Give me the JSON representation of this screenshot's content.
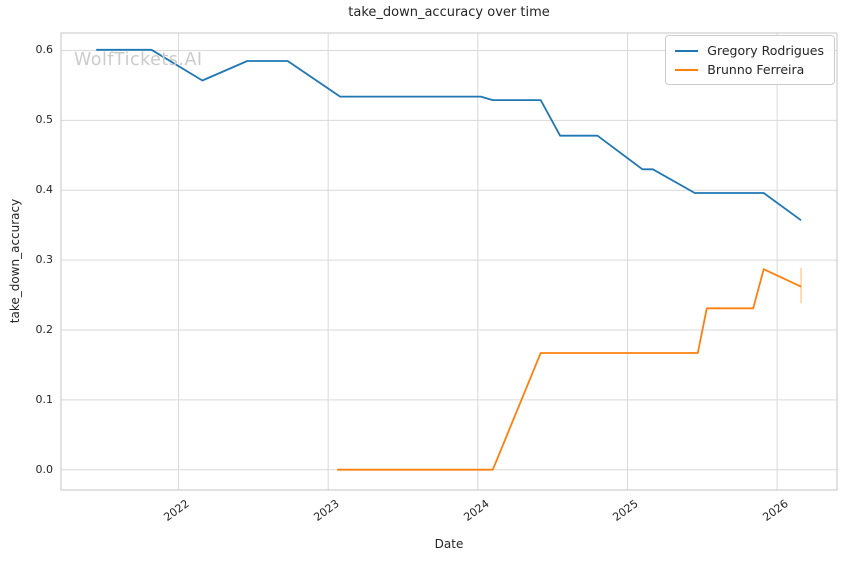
{
  "watermark": {
    "text": "WolfTickets.AI"
  },
  "colors": {
    "grid": "#d9d9d9",
    "spine": "#c6c6c6",
    "text": "#262626",
    "watermark": "#cbcbcb",
    "series_blue": "#1f77b4",
    "series_orange": "#ff7f0e",
    "background": "#ffffff"
  },
  "legend": {
    "position": "upper right",
    "items": [
      {
        "label": "Gregory Rodrigues",
        "color": "#1f77b4"
      },
      {
        "label": "Brunno Ferreira",
        "color": "#ff7f0e"
      }
    ]
  },
  "chart_data": {
    "type": "line",
    "title": "take_down_accuracy over time",
    "xlabel": "Date",
    "ylabel": "take_down_accuracy",
    "xlim": [
      2021.215,
      2026.4
    ],
    "ylim": [
      -0.029,
      0.625
    ],
    "grid": true,
    "legend_position": "upper right",
    "x_ticks": [
      {
        "value": 2022,
        "label": "2022"
      },
      {
        "value": 2023,
        "label": "2023"
      },
      {
        "value": 2024,
        "label": "2024"
      },
      {
        "value": 2025,
        "label": "2025"
      },
      {
        "value": 2026,
        "label": "2026"
      }
    ],
    "y_ticks": [
      {
        "value": 0.0,
        "label": "0.0"
      },
      {
        "value": 0.1,
        "label": "0.1"
      },
      {
        "value": 0.2,
        "label": "0.2"
      },
      {
        "value": 0.3,
        "label": "0.3"
      },
      {
        "value": 0.4,
        "label": "0.4"
      },
      {
        "value": 0.5,
        "label": "0.5"
      },
      {
        "value": 0.6,
        "label": "0.6"
      }
    ],
    "series": [
      {
        "name": "Gregory Rodrigues",
        "color": "#1f77b4",
        "points": [
          [
            2021.45,
            0.601
          ],
          [
            2021.82,
            0.601
          ],
          [
            2022.16,
            0.557
          ],
          [
            2022.46,
            0.585
          ],
          [
            2022.73,
            0.585
          ],
          [
            2023.08,
            0.534
          ],
          [
            2024.02,
            0.534
          ],
          [
            2024.1,
            0.529
          ],
          [
            2024.42,
            0.529
          ],
          [
            2024.55,
            0.478
          ],
          [
            2024.8,
            0.478
          ],
          [
            2025.1,
            0.43
          ],
          [
            2025.17,
            0.43
          ],
          [
            2025.45,
            0.396
          ],
          [
            2025.91,
            0.396
          ],
          [
            2026.16,
            0.357
          ]
        ]
      },
      {
        "name": "Brunno Ferreira",
        "color": "#ff7f0e",
        "points": [
          [
            2023.06,
            0.0
          ],
          [
            2024.1,
            0.0
          ],
          [
            2024.42,
            0.167
          ],
          [
            2025.47,
            0.167
          ],
          [
            2025.53,
            0.231
          ],
          [
            2025.84,
            0.231
          ],
          [
            2025.91,
            0.287
          ],
          [
            2026.16,
            0.262
          ]
        ],
        "error_bar_last": {
          "x": 2026.16,
          "y_low": 0.238,
          "y_high": 0.289
        }
      }
    ]
  }
}
